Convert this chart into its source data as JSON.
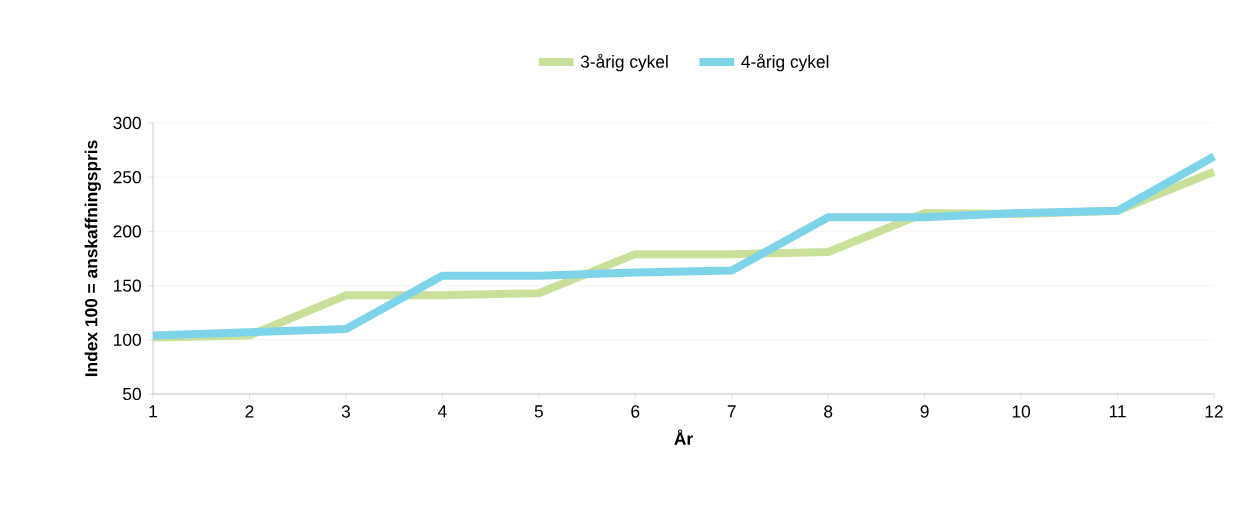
{
  "chart_data": {
    "type": "line",
    "xlabel": "År",
    "ylabel": "Index 100 = anskaffningspris",
    "x": [
      1,
      2,
      3,
      4,
      5,
      6,
      7,
      8,
      9,
      10,
      11,
      12
    ],
    "series": [
      {
        "name": "3-årig cykel",
        "color": "#c9e09a",
        "values": [
          102,
          104,
          141,
          141,
          143,
          179,
          179,
          181,
          217,
          216,
          219,
          255
        ]
      },
      {
        "name": "4-årig cykel",
        "color": "#7dd3e8",
        "values": [
          104,
          107,
          110,
          159,
          159,
          162,
          164,
          213,
          213,
          217,
          219,
          269
        ]
      }
    ],
    "xlim": [
      1,
      12
    ],
    "xticks": [
      1,
      2,
      3,
      4,
      5,
      6,
      7,
      8,
      9,
      10,
      11,
      12
    ],
    "ylim": [
      50,
      300
    ],
    "yticks": [
      50,
      100,
      150,
      200,
      250,
      300
    ],
    "grid": "y",
    "legend": "top",
    "marker": "none",
    "line_style": "solid"
  }
}
